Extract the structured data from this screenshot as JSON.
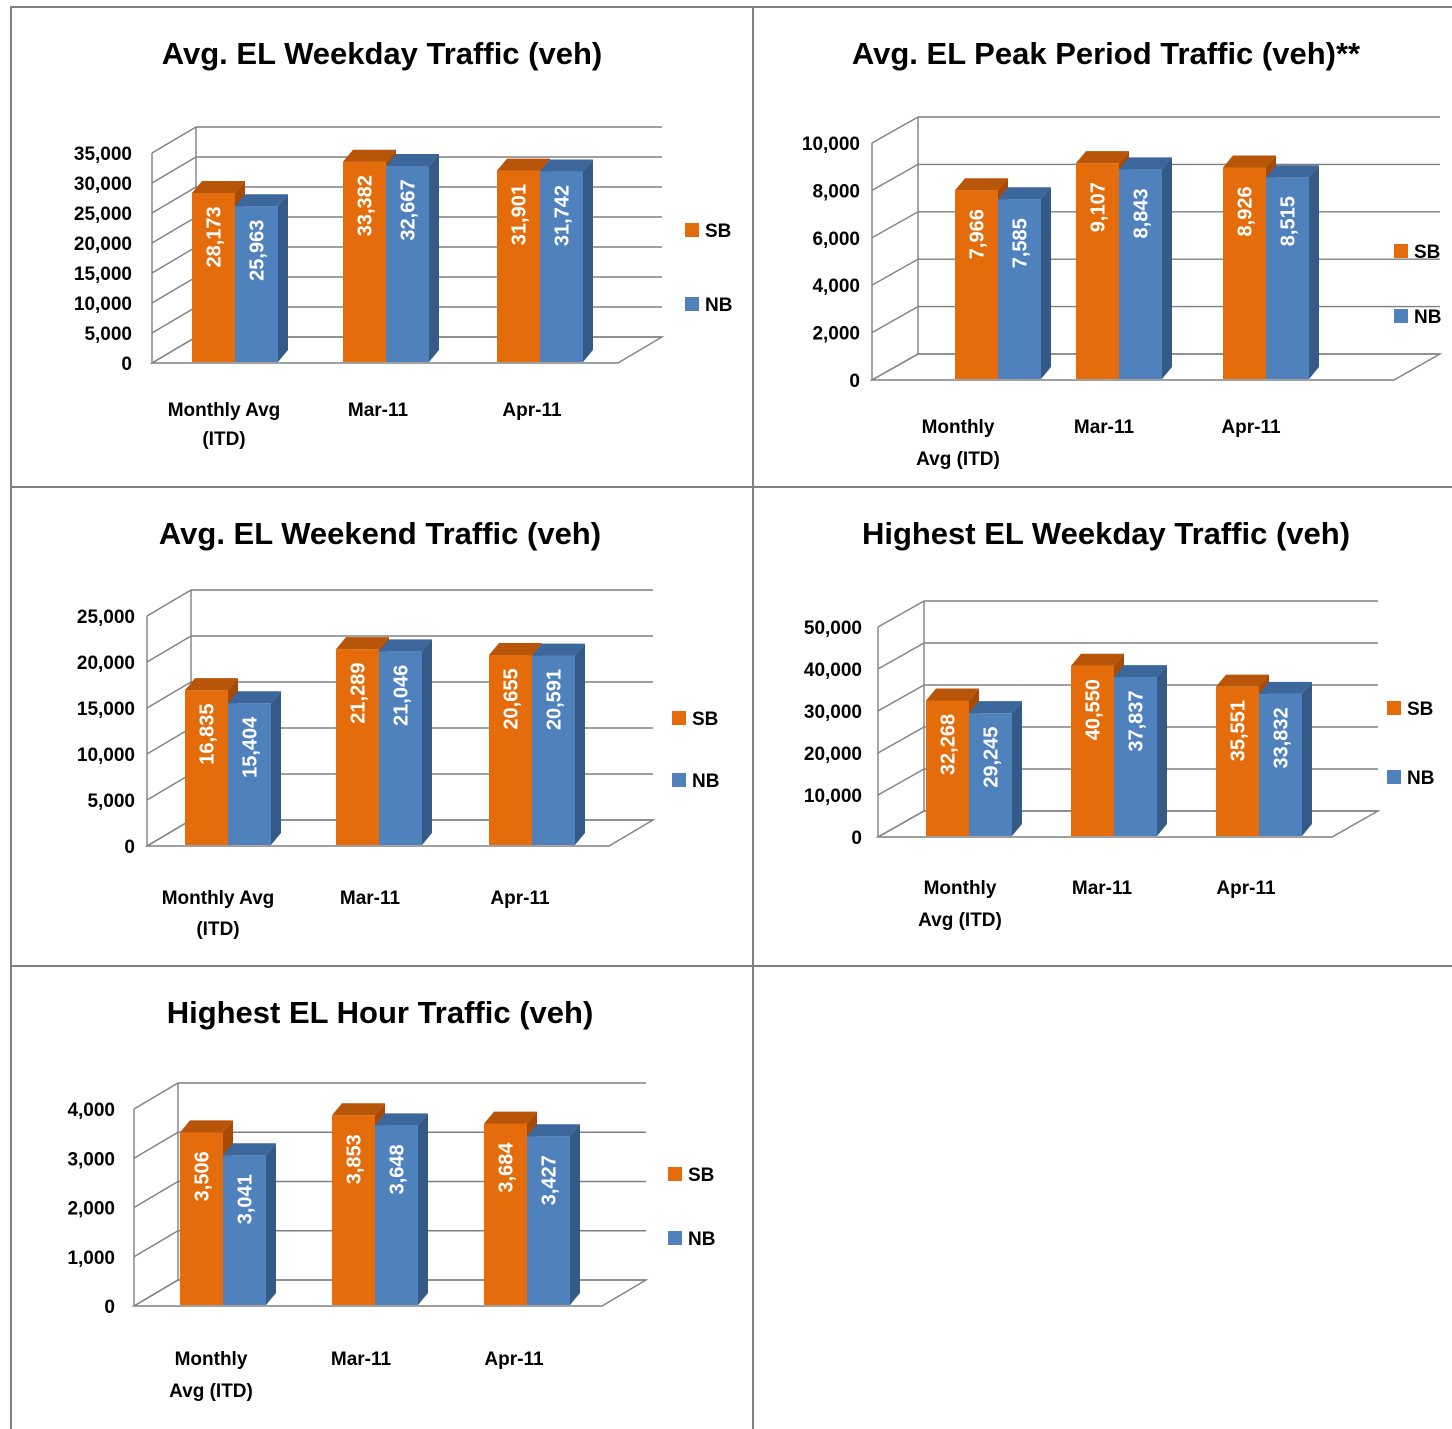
{
  "colors": {
    "sb_front": "#E46C0A",
    "sb_top": "#B85508",
    "sb_side": "#A64A05",
    "nb_front": "#4F81BD",
    "nb_top": "#3C679C",
    "nb_side": "#345A88",
    "gridline": "#808080"
  },
  "legend": [
    "SB",
    "NB"
  ],
  "chart_data": [
    {
      "type": "bar",
      "title": "Avg. EL Weekday Traffic (veh)",
      "categories": [
        [
          "Monthly Avg",
          "(ITD)"
        ],
        [
          "Mar-11"
        ],
        [
          "Apr-11"
        ]
      ],
      "series": [
        {
          "name": "SB",
          "values": [
            28173,
            33382,
            31901
          ],
          "labels": [
            "28,173",
            "33,382",
            "31,901"
          ]
        },
        {
          "name": "NB",
          "values": [
            25963,
            32667,
            31742
          ],
          "labels": [
            "25,963",
            "32,667",
            "31,742"
          ]
        }
      ],
      "ylim": [
        0,
        35000
      ],
      "yticks": [
        "0",
        "5,000",
        "10,000",
        "15,000",
        "20,000",
        "25,000",
        "30,000",
        "35,000"
      ],
      "grid": true,
      "legend_position": "right"
    },
    {
      "type": "bar",
      "title": "Avg. EL Peak Period Traffic (veh)**",
      "categories": [
        [
          "Monthly",
          "Avg (ITD)"
        ],
        [
          "Mar-11"
        ],
        [
          "Apr-11"
        ]
      ],
      "series": [
        {
          "name": "SB",
          "values": [
            7966,
            9107,
            8926
          ],
          "labels": [
            "7,966",
            "9,107",
            "8,926"
          ]
        },
        {
          "name": "NB",
          "values": [
            7585,
            8843,
            8515
          ],
          "labels": [
            "7,585",
            "8,843",
            "8,515"
          ]
        }
      ],
      "ylim": [
        0,
        10000
      ],
      "yticks": [
        "0",
        "2,000",
        "4,000",
        "6,000",
        "8,000",
        "10,000"
      ],
      "grid": true,
      "legend_position": "right"
    },
    {
      "type": "bar",
      "title": "Avg. EL Weekend Traffic (veh)",
      "categories": [
        [
          "Monthly Avg",
          "(ITD)"
        ],
        [
          "Mar-11"
        ],
        [
          "Apr-11"
        ]
      ],
      "series": [
        {
          "name": "SB",
          "values": [
            16835,
            21289,
            20655
          ],
          "labels": [
            "16,835",
            "21,289",
            "20,655"
          ]
        },
        {
          "name": "NB",
          "values": [
            15404,
            21046,
            20591
          ],
          "labels": [
            "15,404",
            "21,046",
            "20,591"
          ]
        }
      ],
      "ylim": [
        0,
        25000
      ],
      "yticks": [
        "0",
        "5,000",
        "10,000",
        "15,000",
        "20,000",
        "25,000"
      ],
      "grid": true,
      "legend_position": "right"
    },
    {
      "type": "bar",
      "title": "Highest EL Weekday Traffic (veh)",
      "categories": [
        [
          "Monthly",
          "Avg (ITD)"
        ],
        [
          "Mar-11"
        ],
        [
          "Apr-11"
        ]
      ],
      "series": [
        {
          "name": "SB",
          "values": [
            32268,
            40550,
            35551
          ],
          "labels": [
            "32,268",
            "40,550",
            "35,551"
          ]
        },
        {
          "name": "NB",
          "values": [
            29245,
            37837,
            33832
          ],
          "labels": [
            "29,245",
            "37,837",
            "33,832"
          ]
        }
      ],
      "ylim": [
        0,
        50000
      ],
      "yticks": [
        "0",
        "10,000",
        "20,000",
        "30,000",
        "40,000",
        "50,000"
      ],
      "grid": true,
      "legend_position": "right"
    },
    {
      "type": "bar",
      "title": "Highest EL Hour Traffic (veh)",
      "categories": [
        [
          "Monthly",
          "Avg (ITD)"
        ],
        [
          "Mar-11"
        ],
        [
          "Apr-11"
        ]
      ],
      "series": [
        {
          "name": "SB",
          "values": [
            3506,
            3853,
            3684
          ],
          "labels": [
            "3,506",
            "3,853",
            "3,684"
          ]
        },
        {
          "name": "NB",
          "values": [
            3041,
            3648,
            3427
          ],
          "labels": [
            "3,041",
            "3,648",
            "3,427"
          ]
        }
      ],
      "ylim": [
        0,
        4000
      ],
      "yticks": [
        "0",
        "1,000",
        "2,000",
        "3,000",
        "4,000"
      ],
      "grid": true,
      "legend_position": "right"
    }
  ]
}
